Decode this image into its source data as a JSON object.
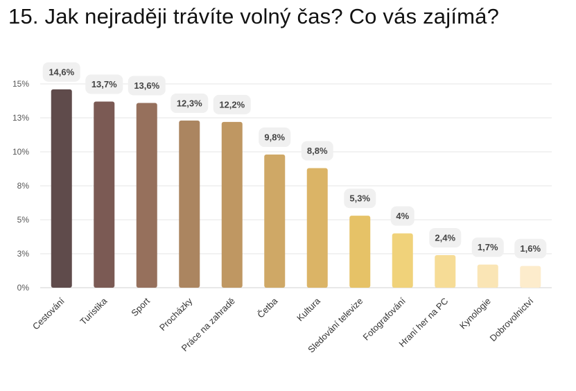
{
  "chart_data": {
    "type": "bar",
    "title": "15. Jak nejraději trávíte volný čas? Co vás zajímá?",
    "categories": [
      "Cestování",
      "Turistika",
      "Sport",
      "Procházky",
      "Práce na zahradě",
      "Četba",
      "Kultura",
      "Sledování televize",
      "Fotografování",
      "Hraní her na PC",
      "Kynologie",
      "Dobrovolnictví"
    ],
    "values": [
      14.6,
      13.7,
      13.6,
      12.3,
      12.2,
      9.8,
      8.8,
      5.3,
      4,
      2.4,
      1.7,
      1.6
    ],
    "data_labels": [
      "14,6%",
      "13,7%",
      "13,6%",
      "12,3%",
      "12,2%",
      "9,8%",
      "8,8%",
      "5,3%",
      "4%",
      "2,4%",
      "1,7%",
      "1,6%"
    ],
    "colors": [
      "#5f4b4b",
      "#7b5a54",
      "#96705c",
      "#ab8560",
      "#bf9762",
      "#cfa866",
      "#dbb466",
      "#e6c267",
      "#f0d27a",
      "#f6dc96",
      "#fae5b5",
      "#fdeccc"
    ],
    "yticks": [
      0,
      2.5,
      5,
      7.5,
      10,
      12.5,
      15
    ],
    "ytick_labels": [
      "0%",
      "3%",
      "5%",
      "8%",
      "10%",
      "13%",
      "15%"
    ],
    "ylim": [
      0,
      15
    ],
    "xlabel": "",
    "ylabel": "",
    "grid": true,
    "legend": "none"
  }
}
